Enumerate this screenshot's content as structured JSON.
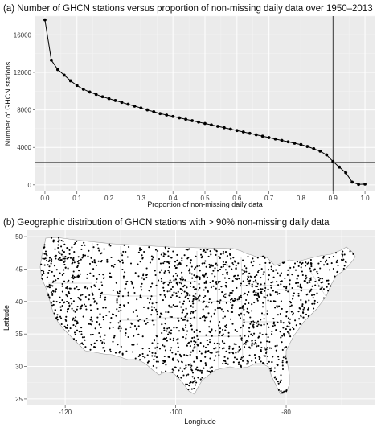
{
  "panels": [
    {
      "title": "(a) Number of GHCN stations versus proportion of non-missing daily data over 1950–2013",
      "chart_data": {
        "type": "line",
        "xlabel": "Proportion of non-missing daily data",
        "ylabel": "Number of GHCN stations",
        "xlim": [
          -0.03,
          1.03
        ],
        "ylim": [
          -700,
          18000
        ],
        "xticks": [
          "0.0",
          "0.1",
          "0.2",
          "0.3",
          "0.4",
          "0.5",
          "0.6",
          "0.7",
          "0.8",
          "0.9",
          "1.0"
        ],
        "yticks": [
          "0",
          "4000",
          "8000",
          "12000",
          "16000"
        ],
        "grid": true,
        "reference_lines": {
          "vline_x": 0.9,
          "hline_y": 2400
        },
        "series": [
          {
            "x": [
              0.0,
              0.02,
              0.04,
              0.06,
              0.08,
              0.1,
              0.12,
              0.14,
              0.16,
              0.18,
              0.2,
              0.22,
              0.24,
              0.26,
              0.28,
              0.3,
              0.32,
              0.34,
              0.36,
              0.38,
              0.4,
              0.42,
              0.44,
              0.46,
              0.48,
              0.5,
              0.52,
              0.54,
              0.56,
              0.58,
              0.6,
              0.62,
              0.64,
              0.66,
              0.68,
              0.7,
              0.72,
              0.74,
              0.76,
              0.78,
              0.8,
              0.82,
              0.84,
              0.86,
              0.88,
              0.9,
              0.92,
              0.94,
              0.96,
              0.98,
              1.0
            ],
            "y": [
              17600,
              13300,
              12300,
              11700,
              11100,
              10600,
              10200,
              9900,
              9650,
              9400,
              9200,
              9000,
              8800,
              8600,
              8400,
              8200,
              8000,
              7800,
              7600,
              7450,
              7300,
              7150,
              7000,
              6850,
              6700,
              6550,
              6400,
              6250,
              6100,
              5950,
              5800,
              5650,
              5500,
              5350,
              5200,
              5050,
              4900,
              4750,
              4600,
              4450,
              4300,
              4100,
              3850,
              3600,
              3200,
              2500,
              1900,
              1300,
              300,
              50,
              80
            ]
          }
        ]
      }
    },
    {
      "title": "(b) Geographic distribution of GHCN stations with > 90% non-missing daily data",
      "chart_data": {
        "type": "scatter",
        "xlabel": "Longitude",
        "ylabel": "Latitude",
        "xlim": [
          -127,
          -64
        ],
        "ylim": [
          24,
          51
        ],
        "xticks": [
          "-120",
          "-100",
          "-80"
        ],
        "yticks": [
          "25",
          "30",
          "35",
          "40",
          "45",
          "50"
        ],
        "grid": true
      }
    }
  ]
}
